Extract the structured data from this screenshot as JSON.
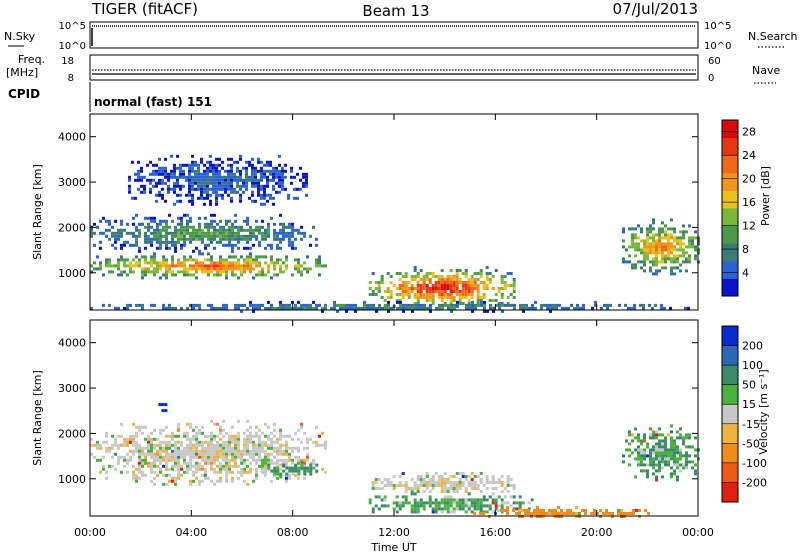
{
  "header": {
    "radar": "TIGER (fitACF)",
    "beam": "Beam 13",
    "date": "07/Jul/2013"
  },
  "panels": {
    "nsky": {
      "left_label": "N.Sky",
      "left_ticks": [
        "10^5",
        "10^0"
      ],
      "right_label": "N.Search",
      "right_ticks": [
        "10^5",
        "10^0"
      ]
    },
    "freq": {
      "left_label_line1": "Freq.",
      "left_label_line2": "[MHz]",
      "left_ticks": [
        "18",
        "8"
      ],
      "right_label": "Nave",
      "right_ticks": [
        "60",
        "0"
      ]
    },
    "cpid": {
      "label": "CPID",
      "mode_text": "normal (fast) 151"
    }
  },
  "chart_data": [
    {
      "type": "heatmap",
      "name": "Power",
      "ylabel": "Slant Range [km]",
      "xlabel": "Time UT",
      "x_ticks": [
        "00:00",
        "04:00",
        "08:00",
        "12:00",
        "16:00",
        "20:00",
        "00:00"
      ],
      "xlim_hours": [
        0,
        24
      ],
      "ylim_km": [
        180,
        4500
      ],
      "y_ticks": [
        1000,
        2000,
        3000,
        4000
      ],
      "colorbar": {
        "label": "Power [dB]",
        "ticks": [
          4,
          8,
          12,
          16,
          20,
          24,
          28
        ],
        "range": [
          0,
          30
        ],
        "colors": [
          "#0a14c8",
          "#2a64d2",
          "#3c7a78",
          "#4a9a4a",
          "#7ab83a",
          "#e6c21a",
          "#f0961c",
          "#ee6a18",
          "#e63812",
          "#d80a0a"
        ]
      },
      "echo_regions": [
        {
          "t0": 0.0,
          "t1": 9.3,
          "r0": 900,
          "r1": 1450,
          "peak_db": 24
        },
        {
          "t0": 0.0,
          "t1": 9.0,
          "r0": 1500,
          "r1": 2300,
          "peak_db": 12
        },
        {
          "t0": 11.0,
          "t1": 16.8,
          "r0": 250,
          "r1": 1150,
          "peak_db": 29
        },
        {
          "t0": 21.0,
          "t1": 24.0,
          "r0": 1000,
          "r1": 2200,
          "peak_db": 22
        },
        {
          "t0": 1.5,
          "t1": 8.5,
          "r0": 2500,
          "r1": 3600,
          "peak_db": 6
        },
        {
          "t0": 0.0,
          "t1": 24.0,
          "r0": 180,
          "r1": 380,
          "peak_db": 10
        }
      ]
    },
    {
      "type": "heatmap",
      "name": "Velocity",
      "ylabel": "Slant Range [km]",
      "xlabel": "Time UT",
      "x_ticks": [
        "00:00",
        "04:00",
        "08:00",
        "12:00",
        "16:00",
        "20:00",
        "00:00"
      ],
      "xlim_hours": [
        0,
        24
      ],
      "ylim_km": [
        180,
        4500
      ],
      "y_ticks": [
        1000,
        2000,
        3000,
        4000
      ],
      "colorbar": {
        "label": "Velocity [m s⁻¹]",
        "ticks": [
          200,
          100,
          50,
          15,
          -15,
          -50,
          -100,
          -200
        ],
        "colors": [
          "#0a2ad2",
          "#2a6ab4",
          "#3c8a6a",
          "#48b23c",
          "#c8c8c8",
          "#f0b43c",
          "#f08c1c",
          "#ee5a14",
          "#e21e10"
        ]
      },
      "echo_regions": [
        {
          "t0": 0.0,
          "t1": 9.3,
          "r0": 900,
          "r1": 2300,
          "velocity_ms": 0
        },
        {
          "t0": 7.0,
          "t1": 9.0,
          "r0": 1050,
          "r1": 1400,
          "velocity_ms": 40
        },
        {
          "t0": 2.7,
          "t1": 3.0,
          "r0": 2500,
          "r1": 2800,
          "velocity_ms": 200
        },
        {
          "t0": 11.0,
          "t1": 16.8,
          "r0": 700,
          "r1": 1150,
          "velocity_ms": 0
        },
        {
          "t0": 11.0,
          "t1": 17.5,
          "r0": 250,
          "r1": 700,
          "velocity_ms": 30
        },
        {
          "t0": 15.0,
          "t1": 22.0,
          "r0": 180,
          "r1": 400,
          "velocity_ms": -50
        },
        {
          "t0": 21.0,
          "t1": 24.0,
          "r0": 1000,
          "r1": 2200,
          "velocity_ms": 30
        }
      ]
    }
  ]
}
